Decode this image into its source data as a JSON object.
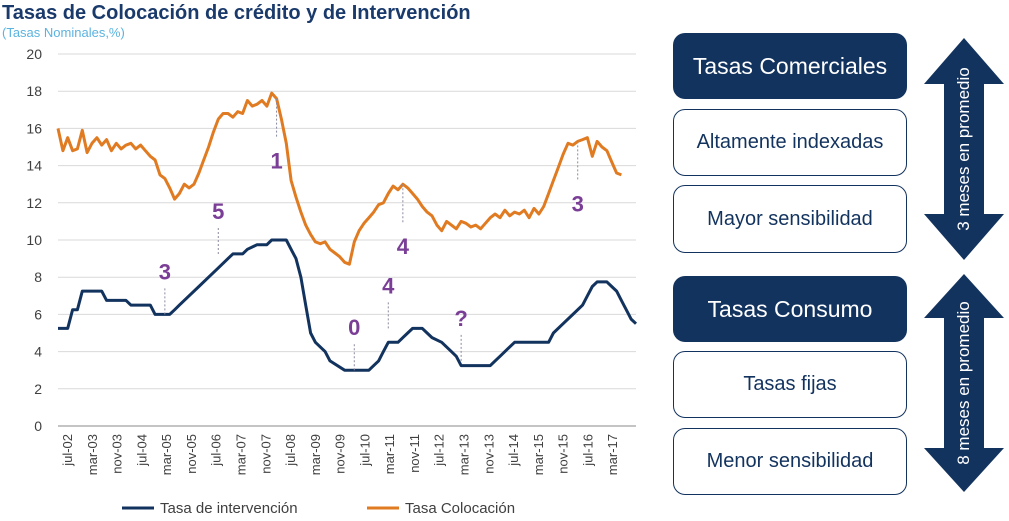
{
  "chart_data": {
    "type": "line",
    "title": "Tasas de Colocación de crédito y  de Intervención",
    "subtitle": "(Tasas  Nominales,%)",
    "ylim": [
      0,
      20
    ],
    "yticks": [
      0,
      2,
      4,
      6,
      8,
      10,
      12,
      14,
      16,
      18,
      20
    ],
    "xticks": [
      "jul-02",
      "mar-03",
      "nov-03",
      "jul-04",
      "mar-05",
      "nov-05",
      "jul-06",
      "mar-07",
      "nov-07",
      "jul-08",
      "mar-09",
      "nov-09",
      "jul-10",
      "mar-11",
      "nov-11",
      "jul-12",
      "mar-13",
      "nov-13",
      "jul-14",
      "mar-15",
      "nov-15",
      "jul-16",
      "mar-17"
    ],
    "grid": true,
    "legend": "bottom",
    "series": [
      {
        "name": "Tasa de intervención",
        "color": "#13335f",
        "points": [
          [
            0,
            5.25
          ],
          [
            2,
            5.25
          ],
          [
            3,
            6.25
          ],
          [
            4,
            6.25
          ],
          [
            5,
            7.25
          ],
          [
            9,
            7.25
          ],
          [
            10,
            6.75
          ],
          [
            14,
            6.75
          ],
          [
            15,
            6.5
          ],
          [
            19,
            6.5
          ],
          [
            20,
            6
          ],
          [
            23,
            6
          ],
          [
            24,
            6.25
          ],
          [
            25,
            6.5
          ],
          [
            27,
            7
          ],
          [
            29,
            7.5
          ],
          [
            31,
            8
          ],
          [
            33,
            8.5
          ],
          [
            35,
            9
          ],
          [
            36,
            9.25
          ],
          [
            38,
            9.25
          ],
          [
            39,
            9.5
          ],
          [
            41,
            9.75
          ],
          [
            43,
            9.75
          ],
          [
            44,
            10
          ],
          [
            47,
            10
          ],
          [
            48,
            9.5
          ],
          [
            49,
            9
          ],
          [
            50,
            8
          ],
          [
            51,
            6.5
          ],
          [
            52,
            5
          ],
          [
            53,
            4.5
          ],
          [
            55,
            4
          ],
          [
            56,
            3.5
          ],
          [
            59,
            3
          ],
          [
            64,
            3
          ],
          [
            65,
            3.25
          ],
          [
            66,
            3.5
          ],
          [
            67,
            4
          ],
          [
            68,
            4.5
          ],
          [
            70,
            4.5
          ],
          [
            71,
            4.75
          ],
          [
            72,
            5
          ],
          [
            73,
            5.25
          ],
          [
            75,
            5.25
          ],
          [
            76,
            5
          ],
          [
            77,
            4.75
          ],
          [
            79,
            4.5
          ],
          [
            81,
            4
          ],
          [
            82,
            3.75
          ],
          [
            83,
            3.25
          ],
          [
            89,
            3.25
          ],
          [
            90,
            3.5
          ],
          [
            91,
            3.75
          ],
          [
            92,
            4
          ],
          [
            93,
            4.25
          ],
          [
            94,
            4.5
          ],
          [
            101,
            4.5
          ],
          [
            102,
            5
          ],
          [
            104,
            5.5
          ],
          [
            106,
            6
          ],
          [
            108,
            6.5
          ],
          [
            109,
            7
          ],
          [
            110,
            7.5
          ],
          [
            111,
            7.75
          ],
          [
            113,
            7.75
          ],
          [
            114,
            7.5
          ],
          [
            115,
            7.25
          ],
          [
            116,
            6.75
          ],
          [
            117,
            6.25
          ],
          [
            118,
            5.75
          ],
          [
            119,
            5.5
          ]
        ]
      },
      {
        "name": "Tasa Colocación",
        "color": "#e07b22",
        "points": [
          [
            0,
            16
          ],
          [
            1,
            14.8
          ],
          [
            2,
            15.5
          ],
          [
            3,
            14.8
          ],
          [
            4,
            14.9
          ],
          [
            5,
            15.9
          ],
          [
            6,
            14.7
          ],
          [
            7,
            15.2
          ],
          [
            8,
            15.5
          ],
          [
            9,
            15.1
          ],
          [
            10,
            15.4
          ],
          [
            11,
            14.8
          ],
          [
            12,
            15.2
          ],
          [
            13,
            14.9
          ],
          [
            14,
            15.1
          ],
          [
            15,
            15.2
          ],
          [
            16,
            14.9
          ],
          [
            17,
            15.1
          ],
          [
            18,
            14.8
          ],
          [
            19,
            14.5
          ],
          [
            20,
            14.3
          ],
          [
            21,
            13.5
          ],
          [
            22,
            13.3
          ],
          [
            23,
            12.8
          ],
          [
            24,
            12.2
          ],
          [
            25,
            12.5
          ],
          [
            26,
            13
          ],
          [
            27,
            12.8
          ],
          [
            28,
            13
          ],
          [
            29,
            13.6
          ],
          [
            30,
            14.3
          ],
          [
            31,
            15
          ],
          [
            32,
            15.8
          ],
          [
            33,
            16.5
          ],
          [
            34,
            16.8
          ],
          [
            35,
            16.8
          ],
          [
            36,
            16.6
          ],
          [
            37,
            16.9
          ],
          [
            38,
            16.8
          ],
          [
            39,
            17.5
          ],
          [
            40,
            17.2
          ],
          [
            41,
            17.3
          ],
          [
            42,
            17.5
          ],
          [
            43,
            17.2
          ],
          [
            44,
            17.9
          ],
          [
            45,
            17.6
          ],
          [
            46,
            16.5
          ],
          [
            47,
            15.2
          ],
          [
            48,
            13.2
          ],
          [
            49,
            12.3
          ],
          [
            50,
            11.5
          ],
          [
            51,
            10.8
          ],
          [
            52,
            10.3
          ],
          [
            53,
            9.9
          ],
          [
            54,
            9.8
          ],
          [
            55,
            9.9
          ],
          [
            56,
            9.5
          ],
          [
            57,
            9.3
          ],
          [
            58,
            9.1
          ],
          [
            59,
            8.8
          ],
          [
            60,
            8.7
          ],
          [
            61,
            9.9
          ],
          [
            62,
            10.5
          ],
          [
            63,
            10.9
          ],
          [
            64,
            11.2
          ],
          [
            65,
            11.5
          ],
          [
            66,
            11.9
          ],
          [
            67,
            12
          ],
          [
            68,
            12.5
          ],
          [
            69,
            12.9
          ],
          [
            70,
            12.7
          ],
          [
            71,
            13
          ],
          [
            72,
            12.8
          ],
          [
            73,
            12.5
          ],
          [
            74,
            12.2
          ],
          [
            75,
            11.8
          ],
          [
            76,
            11.5
          ],
          [
            77,
            11.3
          ],
          [
            78,
            10.8
          ],
          [
            79,
            10.5
          ],
          [
            80,
            11
          ],
          [
            81,
            10.8
          ],
          [
            82,
            10.6
          ],
          [
            83,
            11
          ],
          [
            84,
            10.9
          ],
          [
            85,
            10.7
          ],
          [
            86,
            10.8
          ],
          [
            87,
            10.6
          ],
          [
            88,
            10.9
          ],
          [
            89,
            11.2
          ],
          [
            90,
            11.4
          ],
          [
            91,
            11.2
          ],
          [
            92,
            11.6
          ],
          [
            93,
            11.3
          ],
          [
            94,
            11.5
          ],
          [
            95,
            11.4
          ],
          [
            96,
            11.6
          ],
          [
            97,
            11.2
          ],
          [
            98,
            11.7
          ],
          [
            99,
            11.4
          ],
          [
            100,
            11.8
          ],
          [
            101,
            12.5
          ],
          [
            102,
            13.2
          ],
          [
            103,
            13.9
          ],
          [
            104,
            14.6
          ],
          [
            105,
            15.2
          ],
          [
            106,
            15.1
          ],
          [
            107,
            15.3
          ],
          [
            108,
            15.4
          ],
          [
            109,
            15.5
          ],
          [
            110,
            14.5
          ],
          [
            111,
            15.3
          ],
          [
            112,
            15
          ],
          [
            113,
            14.8
          ],
          [
            114,
            14.2
          ],
          [
            115,
            13.6
          ],
          [
            116,
            13.5
          ]
        ]
      }
    ],
    "annotations": [
      {
        "text": "3",
        "x": 22,
        "y": 6
      },
      {
        "text": "5",
        "x": 33,
        "y": 9.25
      },
      {
        "text": "1",
        "x": 45,
        "y": 17.6
      },
      {
        "text": "0",
        "x": 61,
        "y": 3
      },
      {
        "text": "4",
        "x": 68,
        "y": 5.25
      },
      {
        "text": "4",
        "x": 71,
        "y": 13
      },
      {
        "text": "?",
        "x": 83,
        "y": 3.5
      },
      {
        "text": "3",
        "x": 107,
        "y": 15.3
      }
    ]
  },
  "panel": {
    "commercial_header": "Tasas Comerciales",
    "commercial_item1": "Altamente  indexadas",
    "commercial_item2": "Mayor sensibilidad",
    "commercial_arrow": "3 meses en promedio",
    "consumer_header": "Tasas Consumo",
    "consumer_item1": "Tasas fijas",
    "consumer_item2": "Menor sensibilidad",
    "consumer_arrow": "8 meses en promedio",
    "colors": {
      "dark": "#13335f",
      "annotation": "#7a3e96"
    }
  }
}
